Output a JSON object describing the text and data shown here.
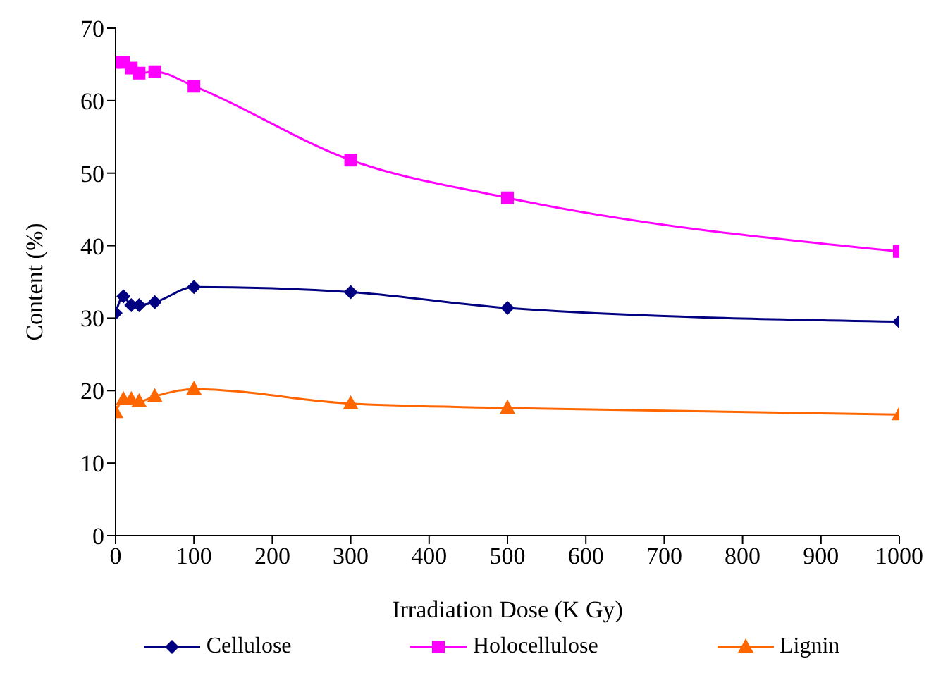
{
  "chart_data": {
    "type": "line",
    "xlabel": "Irradiation Dose (K Gy)",
    "ylabel": "Content (%)",
    "x": [
      0,
      10,
      20,
      30,
      50,
      100,
      300,
      500,
      1000
    ],
    "series": [
      {
        "name": "Cellulose",
        "color": "#000080",
        "marker": "diamond",
        "values": [
          30.7,
          33,
          31.8,
          31.8,
          32.2,
          34.3,
          33.6,
          31.4,
          29.5
        ]
      },
      {
        "name": "Holocellulose",
        "color": "#ff00ff",
        "marker": "square",
        "values": [
          65.3,
          65.3,
          64.5,
          63.8,
          64,
          62,
          51.8,
          46.6,
          39.2
        ]
      },
      {
        "name": "Lignin",
        "color": "#ff6600",
        "marker": "triangle",
        "values": [
          17,
          18.8,
          18.8,
          18.5,
          19.2,
          20.2,
          18.2,
          17.6,
          16.7
        ]
      }
    ],
    "xlim": [
      0,
      1000
    ],
    "xticks": [
      0,
      100,
      200,
      300,
      400,
      500,
      600,
      700,
      800,
      900,
      1000
    ],
    "ylim": [
      0,
      70
    ],
    "yticks": [
      0,
      10,
      20,
      30,
      40,
      50,
      60,
      70
    ],
    "grid": false,
    "legend": "bottom",
    "line_style": "solid"
  }
}
